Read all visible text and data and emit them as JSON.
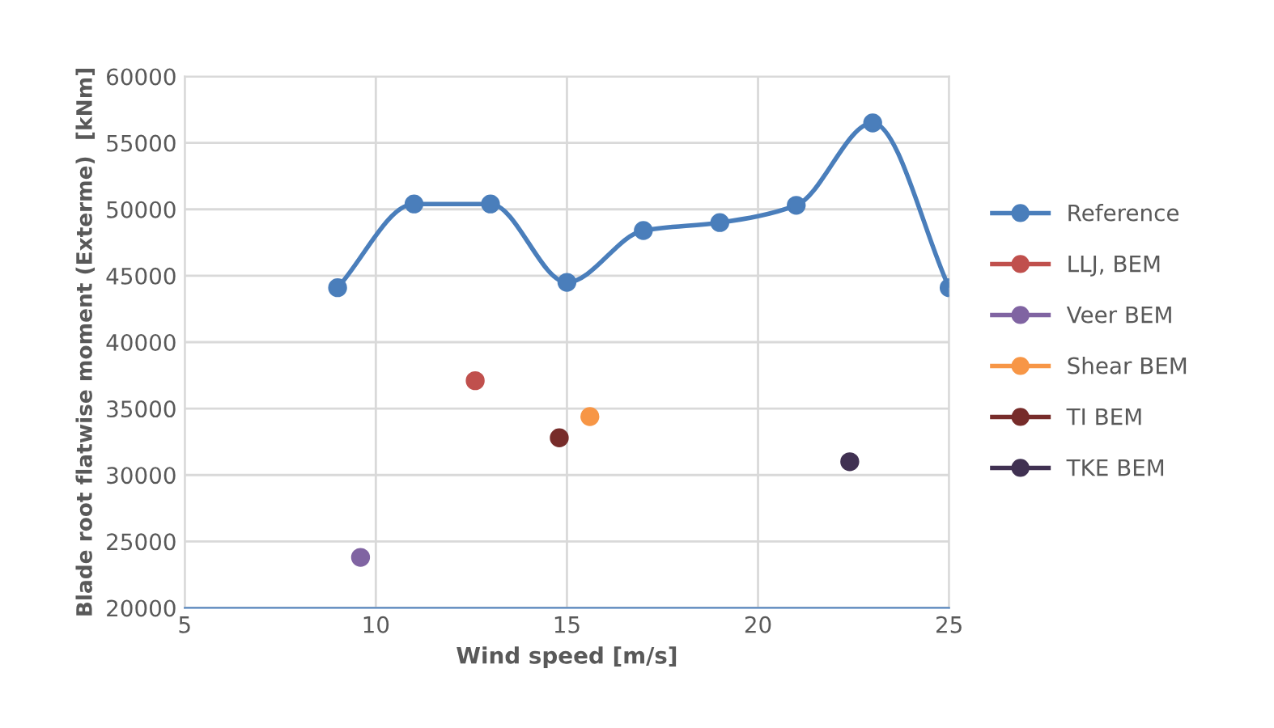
{
  "chart_data": {
    "type": "line",
    "xlabel": "Wind speed [m/s]",
    "ylabel": "Blade root flatwise moment (Exterme)  [kNm]",
    "xlim": [
      5,
      25
    ],
    "xticks": [
      5,
      10,
      15,
      20,
      25
    ],
    "ylim": [
      20000,
      60000
    ],
    "yticks": [
      20000,
      25000,
      30000,
      35000,
      40000,
      45000,
      50000,
      55000,
      60000
    ],
    "grid": true,
    "legend": "right",
    "marker": "circle",
    "line_style": "solid",
    "series": [
      {
        "name": "Reference",
        "color": "#4a7ebb",
        "x": [
          9,
          11,
          13,
          15,
          17,
          19,
          21,
          23,
          25
        ],
        "values": [
          44100,
          50400,
          50400,
          44500,
          48400,
          49000,
          50300,
          56500,
          44100
        ]
      },
      {
        "name": "LLJ, BEM",
        "color": "#c0504d",
        "x": [
          12.6
        ],
        "values": [
          37100
        ]
      },
      {
        "name": "Veer BEM",
        "color": "#8064a2",
        "x": [
          9.6
        ],
        "values": [
          23800
        ]
      },
      {
        "name": "Shear BEM",
        "color": "#f79646",
        "x": [
          15.6
        ],
        "values": [
          34400
        ]
      },
      {
        "name": "TI BEM",
        "color": "#772c2a",
        "x": [
          14.8
        ],
        "values": [
          32800
        ]
      },
      {
        "name": "TKE BEM",
        "color": "#403152",
        "x": [
          22.4
        ],
        "values": [
          31000
        ]
      }
    ]
  }
}
